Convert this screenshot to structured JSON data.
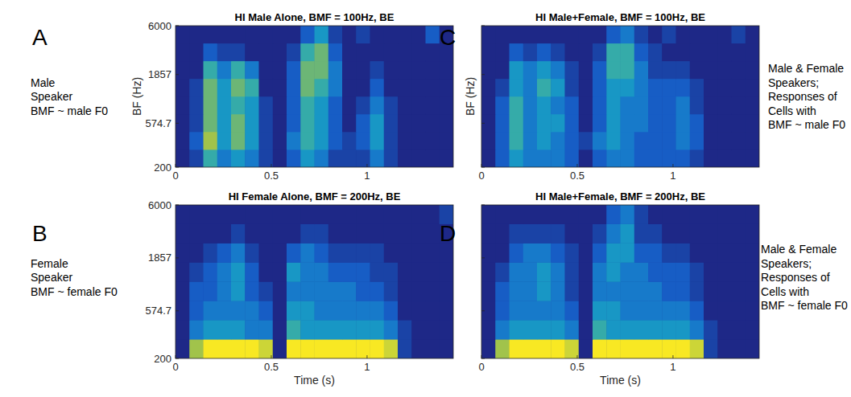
{
  "chart_data": [
    {
      "type": "heatmap",
      "panel_label": "A",
      "title": "HI Male Alone, BMF = 100Hz, BE",
      "ylabel": "BF (Hz)",
      "annotation": [
        "Male",
        "Speaker",
        "BMF ~ male F0"
      ],
      "xlim": [
        0,
        1.45
      ],
      "ylim": [
        200,
        6000
      ],
      "xticks": [
        0,
        0.5,
        1
      ],
      "yticks": [
        200,
        574.7,
        1857,
        6000
      ],
      "log": "y",
      "zlim": [
        0,
        9
      ],
      "x_bins": [
        0,
        0.0725,
        0.145,
        0.2175,
        0.29,
        0.3625,
        0.435,
        0.5075,
        0.58,
        0.6525,
        0.725,
        0.7975,
        0.87,
        0.9425,
        1.015,
        1.0875,
        1.16,
        1.2325,
        1.305,
        1.3775,
        1.45
      ],
      "y_bins": [
        200,
        306,
        469,
        718,
        1099,
        1683,
        2577,
        3945,
        6000
      ],
      "cells": [
        [
          0,
          1,
          5,
          3,
          4,
          3,
          1,
          0,
          2,
          4,
          3,
          1,
          1,
          1,
          3,
          1,
          0,
          0,
          0,
          0
        ],
        [
          0,
          2,
          7,
          4,
          6,
          4,
          1,
          0,
          3,
          5,
          4,
          2,
          1,
          2,
          4,
          1,
          0,
          0,
          0,
          0
        ],
        [
          0,
          1,
          6,
          4,
          6,
          4,
          1,
          0,
          2,
          5,
          4,
          2,
          0,
          2,
          4,
          1,
          0,
          0,
          0,
          0
        ],
        [
          0,
          1,
          6,
          4,
          5,
          4,
          1,
          0,
          2,
          5,
          4,
          2,
          0,
          1,
          3,
          1,
          0,
          0,
          0,
          0
        ],
        [
          0,
          1,
          6,
          4,
          6,
          5,
          0,
          0,
          2,
          6,
          5,
          3,
          0,
          0,
          2,
          0,
          0,
          0,
          0,
          0
        ],
        [
          0,
          0,
          5,
          3,
          5,
          3,
          0,
          0,
          2,
          6,
          6,
          3,
          0,
          0,
          1,
          0,
          0,
          0,
          0,
          0
        ],
        [
          0,
          0,
          2,
          1,
          1,
          0,
          0,
          0,
          1,
          5,
          6,
          2,
          0,
          0,
          0,
          0,
          0,
          0,
          0,
          0
        ],
        [
          0,
          0,
          0,
          0,
          0,
          0,
          0,
          0,
          0,
          2,
          4,
          1,
          0,
          1,
          0,
          0,
          0,
          0,
          2,
          0
        ]
      ]
    },
    {
      "type": "heatmap",
      "panel_label": "B",
      "title": "HI Female Alone, BMF = 200Hz, BE",
      "xlabel": "Time (s)",
      "annotation": [
        "Female",
        "Speaker",
        "BMF ~ female F0"
      ],
      "xlim": [
        0,
        1.45
      ],
      "ylim": [
        200,
        6000
      ],
      "xticks": [
        0,
        0.5,
        1
      ],
      "yticks": [
        200,
        574.7,
        1857,
        6000
      ],
      "log": "y",
      "zlim": [
        0,
        9
      ],
      "x_bins": [
        0,
        0.0725,
        0.145,
        0.2175,
        0.29,
        0.3625,
        0.435,
        0.5075,
        0.58,
        0.6525,
        0.725,
        0.7975,
        0.87,
        0.9425,
        1.015,
        1.0875,
        1.16,
        1.2325,
        1.305,
        1.3775,
        1.45
      ],
      "y_bins": [
        200,
        306,
        469,
        718,
        1099,
        1683,
        2577,
        3945,
        6000
      ],
      "cells": [
        [
          0,
          7,
          9,
          9,
          9,
          9,
          8,
          0,
          9,
          9,
          9,
          9,
          9,
          9,
          9,
          8,
          1,
          0,
          0,
          0
        ],
        [
          0,
          3,
          4,
          4,
          4,
          3,
          3,
          0,
          5,
          4,
          4,
          4,
          4,
          4,
          4,
          3,
          1,
          0,
          0,
          0
        ],
        [
          0,
          2,
          3,
          3,
          3,
          3,
          2,
          0,
          4,
          4,
          3,
          3,
          3,
          3,
          3,
          2,
          0,
          0,
          0,
          0
        ],
        [
          0,
          2,
          2,
          3,
          4,
          2,
          1,
          0,
          3,
          3,
          3,
          3,
          3,
          2,
          2,
          1,
          0,
          0,
          0,
          0
        ],
        [
          0,
          1,
          2,
          3,
          4,
          2,
          0,
          0,
          4,
          3,
          3,
          2,
          2,
          2,
          1,
          1,
          0,
          0,
          0,
          0
        ],
        [
          0,
          0,
          1,
          2,
          3,
          1,
          0,
          0,
          2,
          3,
          2,
          1,
          1,
          1,
          1,
          0,
          0,
          0,
          0,
          0
        ],
        [
          0,
          0,
          0,
          0,
          1,
          0,
          0,
          0,
          0,
          1,
          1,
          0,
          0,
          0,
          0,
          0,
          0,
          0,
          0,
          0
        ],
        [
          0,
          0,
          0,
          0,
          0,
          0,
          0,
          0,
          0,
          0,
          0,
          0,
          0,
          0,
          0,
          0,
          0,
          0,
          0,
          1
        ]
      ]
    },
    {
      "type": "heatmap",
      "panel_label": "C",
      "title": "HI Male+Female, BMF = 100Hz, BE",
      "ylabel": "BF (Hz)",
      "annotation": [
        "Male & Female",
        "Speakers;",
        "Responses of",
        "Cells with",
        "BMF ~ male F0"
      ],
      "xlim": [
        0,
        1.45
      ],
      "ylim": [
        200,
        6000
      ],
      "xticks": [
        0,
        0.5,
        1
      ],
      "yticks": [
        200,
        574.7,
        1857,
        6000
      ],
      "log": "y",
      "zlim": [
        0,
        9
      ],
      "tick_labels": "x",
      "x_bins": [
        0,
        0.0725,
        0.145,
        0.2175,
        0.29,
        0.3625,
        0.435,
        0.5075,
        0.58,
        0.6525,
        0.725,
        0.7975,
        0.87,
        0.9425,
        1.015,
        1.0875,
        1.16,
        1.2325,
        1.305,
        1.3775,
        1.45
      ],
      "y_bins": [
        200,
        306,
        469,
        718,
        1099,
        1683,
        2577,
        3945,
        6000
      ],
      "cells": [
        [
          0,
          2,
          4,
          3,
          3,
          3,
          2,
          0,
          2,
          3,
          3,
          2,
          2,
          2,
          2,
          1,
          0,
          0,
          0,
          0
        ],
        [
          0,
          2,
          5,
          3,
          4,
          3,
          2,
          1,
          3,
          4,
          3,
          2,
          2,
          2,
          3,
          2,
          0,
          0,
          0,
          0
        ],
        [
          0,
          2,
          5,
          3,
          4,
          4,
          2,
          0,
          2,
          4,
          3,
          3,
          2,
          2,
          3,
          2,
          0,
          0,
          0,
          0
        ],
        [
          0,
          2,
          5,
          3,
          4,
          3,
          2,
          0,
          2,
          4,
          3,
          3,
          2,
          2,
          3,
          1,
          0,
          0,
          0,
          0
        ],
        [
          0,
          1,
          4,
          3,
          5,
          4,
          1,
          0,
          2,
          4,
          4,
          3,
          2,
          2,
          2,
          1,
          0,
          0,
          0,
          0
        ],
        [
          0,
          0,
          4,
          3,
          4,
          3,
          1,
          0,
          2,
          5,
          5,
          3,
          1,
          1,
          1,
          0,
          0,
          0,
          0,
          0
        ],
        [
          0,
          0,
          2,
          1,
          2,
          1,
          0,
          0,
          1,
          5,
          5,
          2,
          1,
          0,
          0,
          0,
          0,
          0,
          0,
          0
        ],
        [
          0,
          0,
          0,
          0,
          0,
          0,
          0,
          0,
          0,
          2,
          3,
          1,
          0,
          1,
          0,
          0,
          0,
          0,
          1,
          0
        ]
      ]
    },
    {
      "type": "heatmap",
      "panel_label": "D",
      "title": "HI Male+Female, BMF = 200Hz, BE",
      "xlabel": "Time (s)",
      "annotation": [
        "Male & Female",
        "Speakers;",
        "Responses of",
        "Cells with",
        "BMF ~ female F0"
      ],
      "xlim": [
        0,
        1.45
      ],
      "ylim": [
        200,
        6000
      ],
      "xticks": [
        0,
        0.5,
        1
      ],
      "yticks": [
        200,
        574.7,
        1857,
        6000
      ],
      "log": "y",
      "zlim": [
        0,
        9
      ],
      "tick_labels": "x",
      "x_bins": [
        0,
        0.0725,
        0.145,
        0.2175,
        0.29,
        0.3625,
        0.435,
        0.5075,
        0.58,
        0.6525,
        0.725,
        0.7975,
        0.87,
        0.9425,
        1.015,
        1.0875,
        1.16,
        1.2325,
        1.305,
        1.3775,
        1.45
      ],
      "y_bins": [
        200,
        306,
        469,
        718,
        1099,
        1683,
        2577,
        3945,
        6000
      ],
      "cells": [
        [
          0,
          7,
          9,
          9,
          9,
          9,
          8,
          0,
          9,
          9,
          9,
          9,
          9,
          9,
          9,
          8,
          1,
          0,
          0,
          0
        ],
        [
          0,
          3,
          4,
          4,
          4,
          4,
          3,
          0,
          5,
          4,
          4,
          4,
          4,
          4,
          4,
          3,
          1,
          0,
          0,
          0
        ],
        [
          0,
          2,
          3,
          3,
          3,
          3,
          2,
          0,
          4,
          4,
          3,
          3,
          3,
          3,
          3,
          2,
          0,
          0,
          0,
          0
        ],
        [
          0,
          2,
          3,
          3,
          4,
          3,
          1,
          0,
          3,
          3,
          3,
          3,
          3,
          2,
          2,
          1,
          0,
          0,
          0,
          0
        ],
        [
          0,
          1,
          3,
          3,
          4,
          3,
          1,
          0,
          3,
          4,
          3,
          3,
          2,
          2,
          2,
          1,
          0,
          0,
          0,
          0
        ],
        [
          0,
          0,
          2,
          3,
          3,
          2,
          1,
          0,
          2,
          4,
          4,
          2,
          2,
          1,
          1,
          0,
          0,
          0,
          0,
          0
        ],
        [
          0,
          0,
          1,
          1,
          1,
          1,
          0,
          0,
          1,
          3,
          4,
          1,
          1,
          0,
          0,
          0,
          0,
          0,
          0,
          0
        ],
        [
          0,
          0,
          0,
          0,
          0,
          0,
          0,
          0,
          0,
          2,
          3,
          1,
          0,
          0,
          0,
          0,
          0,
          0,
          0,
          0
        ]
      ]
    }
  ]
}
